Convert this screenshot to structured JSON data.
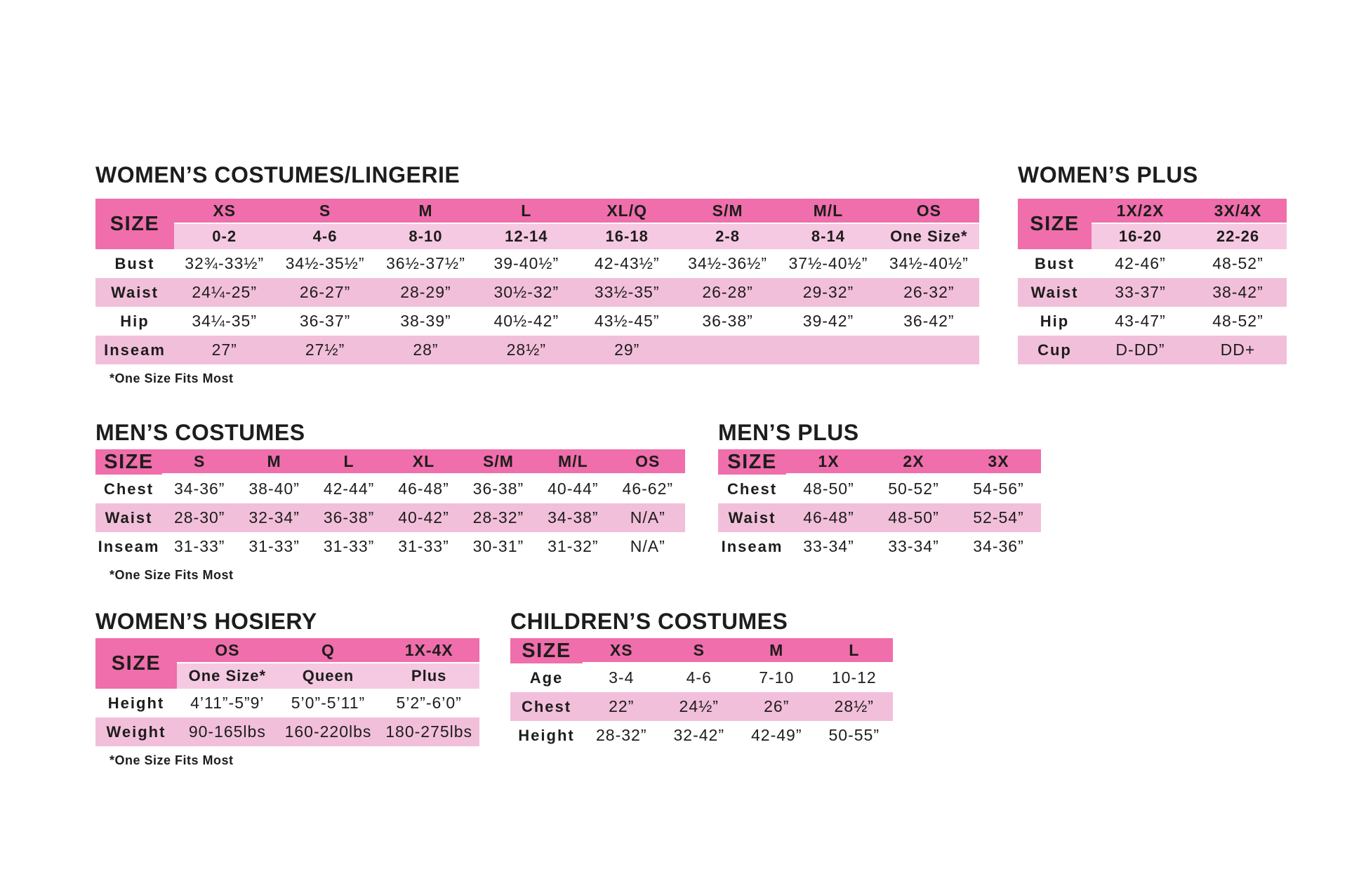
{
  "colors": {
    "header_pink": "#EF6EAB",
    "subheader_pink": "#F5C9E2",
    "row_pink": "#F2BFDB",
    "text": "#1D1D1B",
    "background": "#FFFFFF"
  },
  "tables": [
    {
      "id": "womens-costumes",
      "title": "WOMEN’S COSTUMES/LINGERIE",
      "size_label": "SIZE",
      "col_headers": [
        "XS",
        "S",
        "M",
        "L",
        "XL/Q",
        "S/M",
        "M/L",
        "OS"
      ],
      "sub_headers": [
        "0-2",
        "4-6",
        "8-10",
        "12-14",
        "16-18",
        "2-8",
        "8-14",
        "One Size*"
      ],
      "rows": [
        {
          "label": "Bust",
          "cells": [
            "32¾-33½”",
            "34½-35½”",
            "36½-37½”",
            "39-40½”",
            "42-43½”",
            "34½-36½”",
            "37½-40½”",
            "34½-40½”"
          ]
        },
        {
          "label": "Waist",
          "cells": [
            "24¼-25”",
            "26-27”",
            "28-29”",
            "30½-32”",
            "33½-35”",
            "26-28”",
            "29-32”",
            "26-32”"
          ]
        },
        {
          "label": "Hip",
          "cells": [
            "34¼-35”",
            "36-37”",
            "38-39”",
            "40½-42”",
            "43½-45”",
            "36-38”",
            "39-42”",
            "36-42”"
          ]
        },
        {
          "label": "Inseam",
          "cells": [
            "27”",
            "27½”",
            "28”",
            "28½”",
            "29”",
            "",
            "",
            ""
          ]
        }
      ],
      "footnote": "*One Size Fits Most"
    },
    {
      "id": "womens-plus",
      "title": "WOMEN’S PLUS",
      "size_label": "SIZE",
      "col_headers": [
        "1X/2X",
        "3X/4X"
      ],
      "sub_headers": [
        "16-20",
        "22-26"
      ],
      "rows": [
        {
          "label": "Bust",
          "cells": [
            "42-46”",
            "48-52”"
          ]
        },
        {
          "label": "Waist",
          "cells": [
            "33-37”",
            "38-42”"
          ]
        },
        {
          "label": "Hip",
          "cells": [
            "43-47”",
            "48-52”"
          ]
        },
        {
          "label": "Cup",
          "cells": [
            "D-DD”",
            "DD+"
          ]
        }
      ]
    },
    {
      "id": "mens-costumes",
      "title": "MEN’S COSTUMES",
      "size_label": "SIZE",
      "col_headers": [
        "S",
        "M",
        "L",
        "XL",
        "S/M",
        "M/L",
        "OS"
      ],
      "rows": [
        {
          "label": "Chest",
          "cells": [
            "34-36”",
            "38-40”",
            "42-44”",
            "46-48”",
            "36-38”",
            "40-44”",
            "46-62”"
          ]
        },
        {
          "label": "Waist",
          "cells": [
            "28-30”",
            "32-34”",
            "36-38”",
            "40-42”",
            "28-32”",
            "34-38”",
            "N/A”"
          ]
        },
        {
          "label": "Inseam",
          "cells": [
            "31-33”",
            "31-33”",
            "31-33”",
            "31-33”",
            "30-31”",
            "31-32”",
            "N/A”"
          ]
        }
      ],
      "footnote": "*One Size Fits Most"
    },
    {
      "id": "mens-plus",
      "title": "MEN’S PLUS",
      "size_label": "SIZE",
      "col_headers": [
        "1X",
        "2X",
        "3X"
      ],
      "rows": [
        {
          "label": "Chest",
          "cells": [
            "48-50”",
            "50-52”",
            "54-56”"
          ]
        },
        {
          "label": "Waist",
          "cells": [
            "46-48”",
            "48-50”",
            "52-54”"
          ]
        },
        {
          "label": "Inseam",
          "cells": [
            "33-34”",
            "33-34”",
            "34-36”"
          ]
        }
      ]
    },
    {
      "id": "womens-hosiery",
      "title": "WOMEN’S HOSIERY",
      "size_label": "SIZE",
      "col_headers": [
        "OS",
        "Q",
        "1X-4X"
      ],
      "sub_headers": [
        "One Size*",
        "Queen",
        "Plus"
      ],
      "rows": [
        {
          "label": "Height",
          "cells": [
            "4’11”-5”9’",
            "5’0”-5’11”",
            "5’2”-6’0”"
          ]
        },
        {
          "label": "Weight",
          "cells": [
            "90-165lbs",
            "160-220lbs",
            "180-275lbs"
          ]
        }
      ],
      "footnote": "*One Size Fits Most"
    },
    {
      "id": "childrens-costumes",
      "title": "CHILDREN’S COSTUMES",
      "size_label": "SIZE",
      "col_headers": [
        "XS",
        "S",
        "M",
        "L"
      ],
      "rows": [
        {
          "label": "Age",
          "cells": [
            "3-4",
            "4-6",
            "7-10",
            "10-12"
          ]
        },
        {
          "label": "Chest",
          "cells": [
            "22”",
            "24½”",
            "26”",
            "28½”"
          ]
        },
        {
          "label": "Height",
          "cells": [
            "28-32”",
            "32-42”",
            "42-49”",
            "50-55”"
          ]
        }
      ]
    }
  ]
}
